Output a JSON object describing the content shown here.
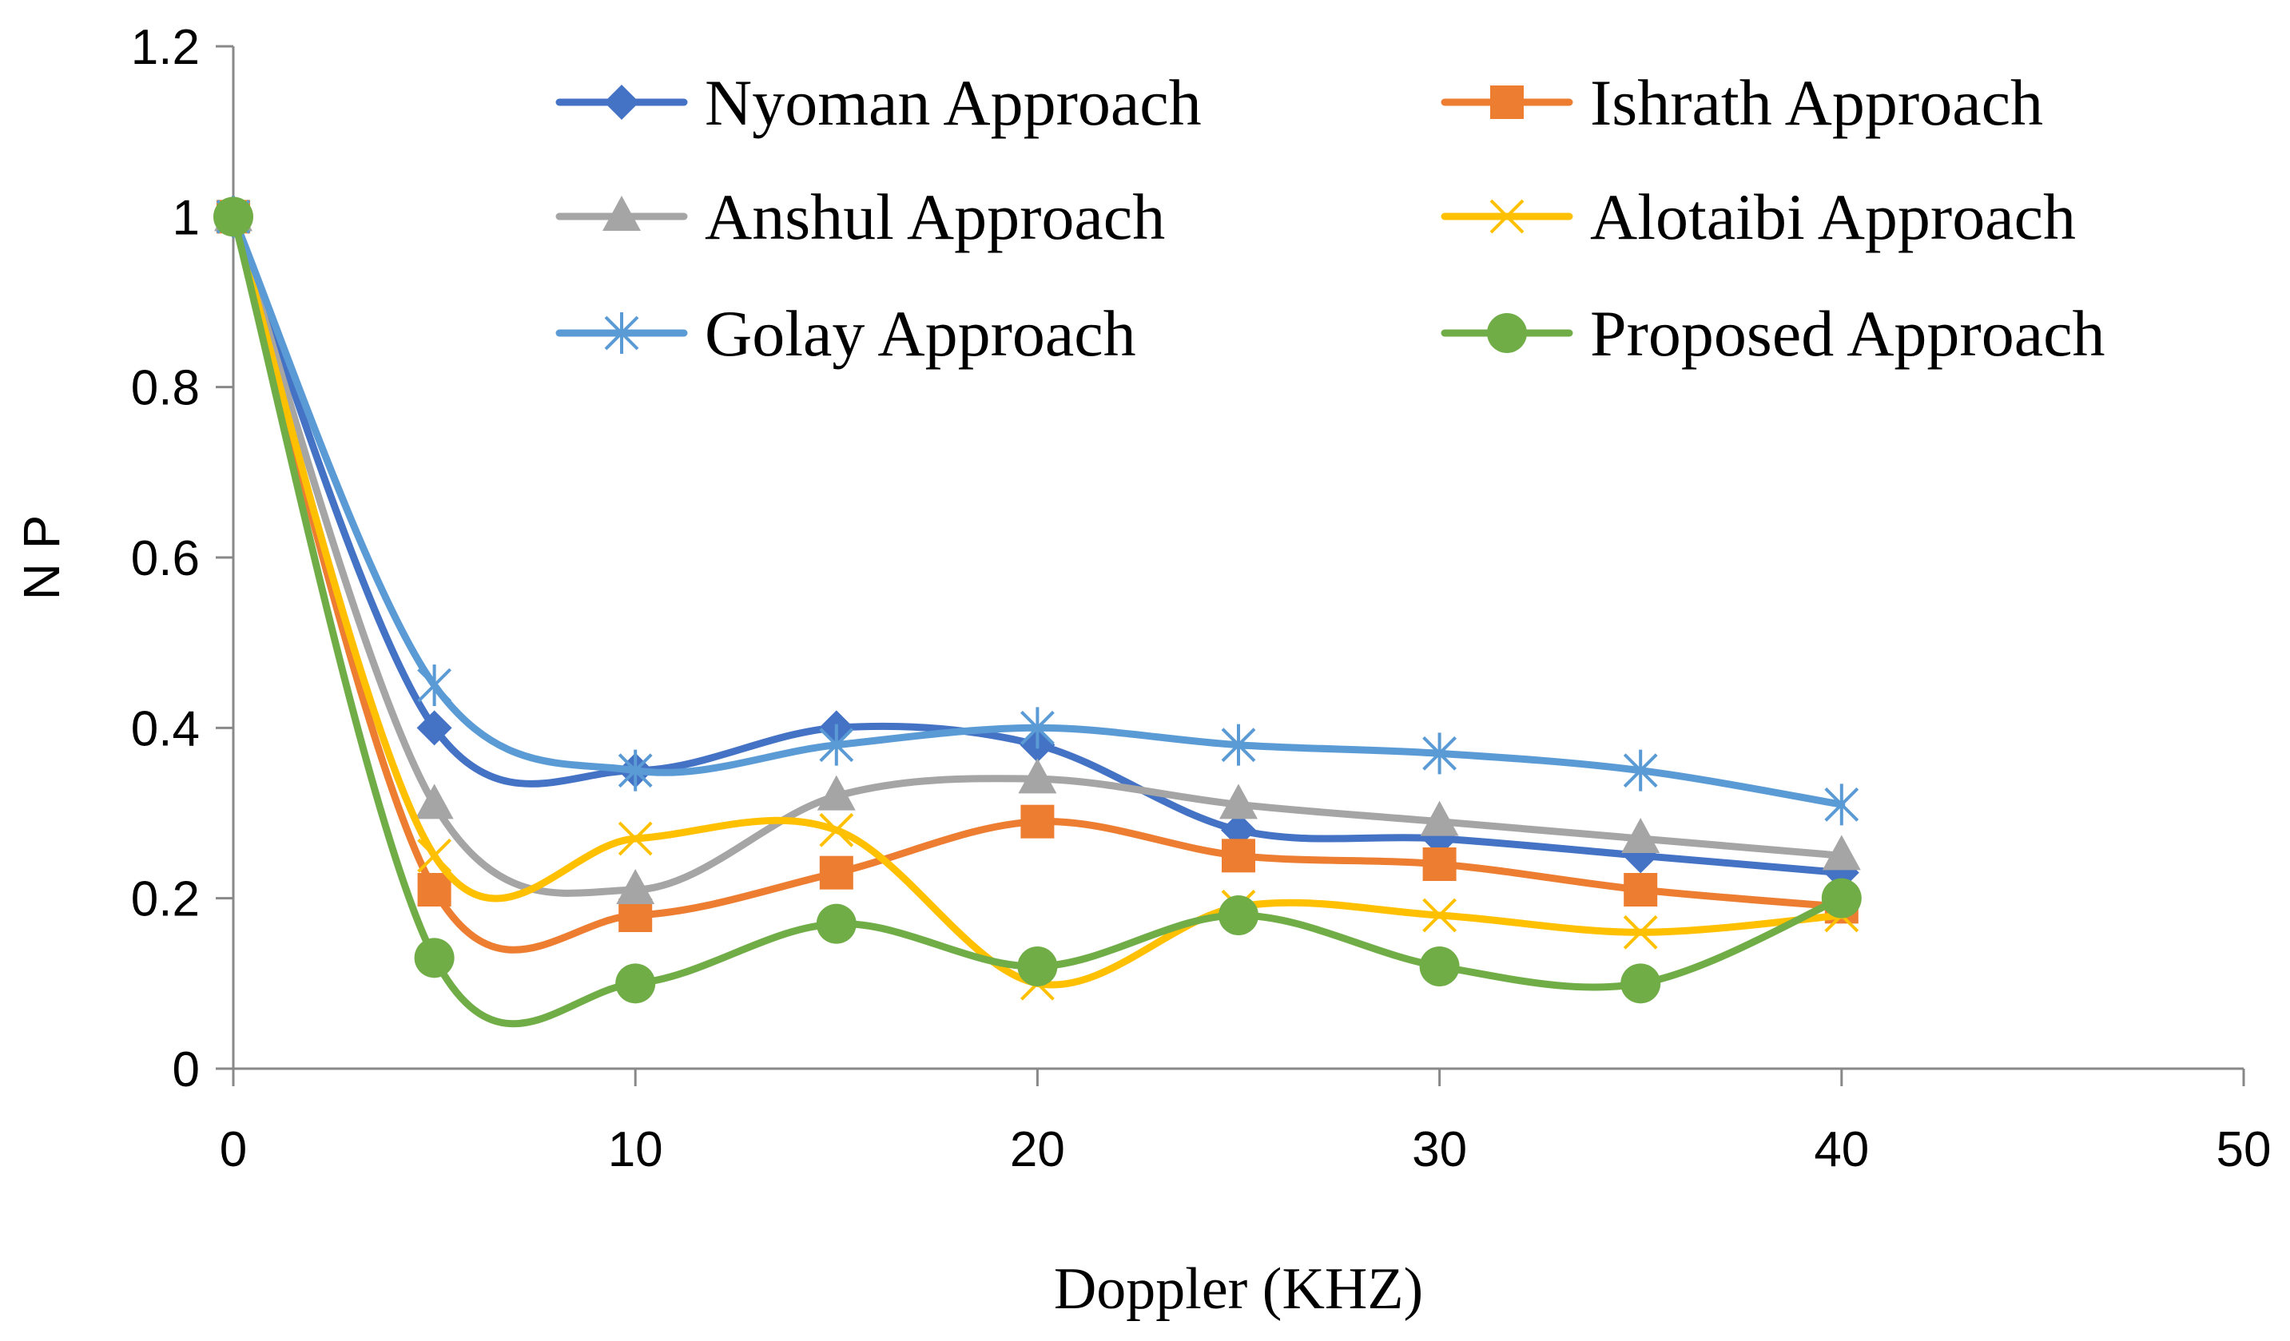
{
  "chart_data": {
    "type": "line",
    "title": "",
    "xlabel": "Doppler (KHZ)",
    "ylabel": "N P",
    "xlim": [
      0,
      50
    ],
    "ylim": [
      0,
      1.2
    ],
    "xticks": [
      0,
      10,
      20,
      30,
      40,
      50
    ],
    "yticks": [
      0,
      0.2,
      0.4,
      0.6,
      0.8,
      1,
      1.2
    ],
    "xtick_labels": [
      "0",
      "10",
      "20",
      "30",
      "40",
      "50"
    ],
    "ytick_labels": [
      "0",
      "0.2",
      "0.4",
      "0.6",
      "0.8",
      "1",
      "1.2"
    ],
    "grid": false,
    "legend_position": "top-right",
    "smooth": true,
    "x": [
      0,
      5,
      10,
      15,
      20,
      25,
      30,
      35,
      40
    ],
    "series": [
      {
        "name": "Nyoman Approach",
        "color": "#4472C4",
        "marker": "diamond",
        "values": [
          1,
          0.4,
          0.35,
          0.4,
          0.38,
          0.28,
          0.27,
          0.25,
          0.23
        ]
      },
      {
        "name": "Ishrath Approach",
        "color": "#ED7D31",
        "marker": "square",
        "values": [
          1,
          0.21,
          0.18,
          0.23,
          0.29,
          0.25,
          0.24,
          0.21,
          0.19
        ]
      },
      {
        "name": "Anshul Approach",
        "color": "#A5A5A5",
        "marker": "triangle",
        "values": [
          1,
          0.31,
          0.21,
          0.32,
          0.34,
          0.31,
          0.29,
          0.27,
          0.25
        ]
      },
      {
        "name": "Alotaibi Approach",
        "color": "#FFC000",
        "marker": "x",
        "values": [
          1,
          0.25,
          0.27,
          0.28,
          0.1,
          0.19,
          0.18,
          0.16,
          0.18
        ]
      },
      {
        "name": "Golay Approach",
        "color": "#5B9BD5",
        "marker": "star",
        "values": [
          1,
          0.45,
          0.35,
          0.38,
          0.4,
          0.38,
          0.37,
          0.35,
          0.31
        ]
      },
      {
        "name": "Proposed Approach",
        "color": "#70AD47",
        "marker": "circle",
        "values": [
          1,
          0.13,
          0.1,
          0.17,
          0.12,
          0.18,
          0.12,
          0.1,
          0.2
        ]
      }
    ]
  }
}
